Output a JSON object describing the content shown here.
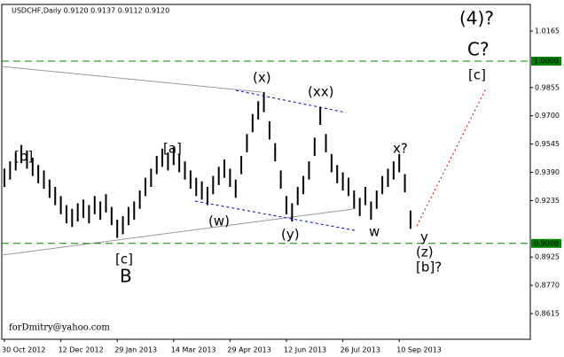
{
  "chart_data": {
    "type": "range-bar",
    "title": "USDCHF,Daily  0.9120 0.9137 0.9112 0.9120",
    "watermark": "forDmitry@yahoo.com",
    "color": "#000000",
    "categories": [
      "30 Oct 2012",
      null,
      null,
      null,
      null,
      null,
      null,
      null,
      null,
      null,
      "12 Dec 2012",
      null,
      null,
      null,
      null,
      null,
      null,
      null,
      null,
      null,
      "29 Jan 2013",
      null,
      null,
      null,
      null,
      null,
      null,
      null,
      null,
      null,
      "14 Mar 2013",
      null,
      null,
      null,
      null,
      null,
      null,
      null,
      null,
      null,
      "29 Apr 2013",
      null,
      null,
      null,
      null,
      null,
      null,
      null,
      null,
      null,
      "12 Jun 2013",
      null,
      null,
      null,
      null,
      null,
      null,
      null,
      null,
      null,
      "26 Jul 2013",
      null,
      null,
      null,
      null,
      null,
      null,
      null,
      null,
      null,
      "10 Sep 2013",
      null,
      null
    ],
    "high": [
      0.941,
      0.945,
      0.95,
      0.954,
      0.951,
      0.947,
      0.943,
      0.94,
      0.935,
      0.931,
      0.926,
      0.921,
      0.919,
      0.922,
      0.924,
      0.921,
      0.926,
      0.923,
      0.927,
      0.92,
      0.913,
      0.915,
      0.92,
      0.923,
      0.929,
      0.936,
      0.941,
      0.948,
      0.952,
      0.95,
      0.953,
      0.949,
      0.945,
      0.94,
      0.936,
      0.934,
      0.931,
      0.937,
      0.942,
      0.946,
      0.941,
      0.935,
      0.948,
      0.96,
      0.971,
      0.978,
      0.983,
      0.967,
      0.955,
      0.94,
      0.926,
      0.922,
      0.931,
      0.937,
      0.945,
      0.958,
      0.975,
      0.96,
      0.949,
      0.943,
      0.939,
      0.936,
      0.929,
      0.925,
      0.931,
      0.923,
      0.929,
      0.937,
      0.941,
      0.945,
      0.949,
      0.938,
      0.918
    ],
    "low": [
      0.931,
      0.935,
      0.94,
      0.944,
      0.941,
      0.937,
      0.933,
      0.93,
      0.925,
      0.921,
      0.916,
      0.911,
      0.909,
      0.912,
      0.914,
      0.911,
      0.916,
      0.913,
      0.917,
      0.91,
      0.903,
      0.905,
      0.91,
      0.913,
      0.919,
      0.926,
      0.931,
      0.938,
      0.942,
      0.94,
      0.943,
      0.939,
      0.935,
      0.93,
      0.926,
      0.924,
      0.921,
      0.927,
      0.932,
      0.936,
      0.931,
      0.925,
      0.938,
      0.95,
      0.961,
      0.968,
      0.972,
      0.957,
      0.945,
      0.93,
      0.916,
      0.912,
      0.921,
      0.927,
      0.935,
      0.948,
      0.965,
      0.95,
      0.939,
      0.933,
      0.929,
      0.926,
      0.919,
      0.915,
      0.921,
      0.913,
      0.919,
      0.927,
      0.931,
      0.935,
      0.939,
      0.928,
      0.908
    ],
    "ylim": [
      0.8474,
      1.0311
    ],
    "yticks": [
      1.0165,
      0.9855,
      {
        "value": 0.97,
        "label": "0.9700"
      },
      0.9545,
      {
        "value": 0.939,
        "label": "0.9390"
      },
      0.9235,
      0.8925,
      {
        "value": 0.877,
        "label": "0.8770"
      },
      0.8615
    ],
    "levels": [
      {
        "value": 1.0,
        "label": "1.0000"
      },
      {
        "value": 0.9,
        "label": "0.9000"
      }
    ],
    "level_color": "#008000",
    "annotations": [
      {
        "text": "(4)?",
        "color": "#0000cc"
      },
      {
        "text": "C?",
        "color": "#a52a2a"
      },
      {
        "text": "[c]",
        "color": "#228b22"
      },
      {
        "text": "[b]",
        "color": "#228b22"
      },
      {
        "text": "[a]",
        "color": "#228b22"
      },
      {
        "text": "(x)",
        "color": "#0000cc"
      },
      {
        "text": "(xx)",
        "color": "#0000cc"
      },
      {
        "text": "(w)",
        "color": "#0000cc"
      },
      {
        "text": "(y)",
        "color": "#0000cc"
      },
      {
        "text": "w",
        "color": "#a52a2a"
      },
      {
        "text": "x?",
        "color": "#a52a2a"
      },
      {
        "text": "y",
        "color": "#a52a2a"
      },
      {
        "text": "(z)",
        "color": "#0000cc"
      },
      {
        "text": "[b]?",
        "color": "#228b22"
      },
      {
        "text": "[c]",
        "color": "#228b22"
      },
      {
        "text": "B",
        "color": "#a52a2a"
      }
    ]
  }
}
